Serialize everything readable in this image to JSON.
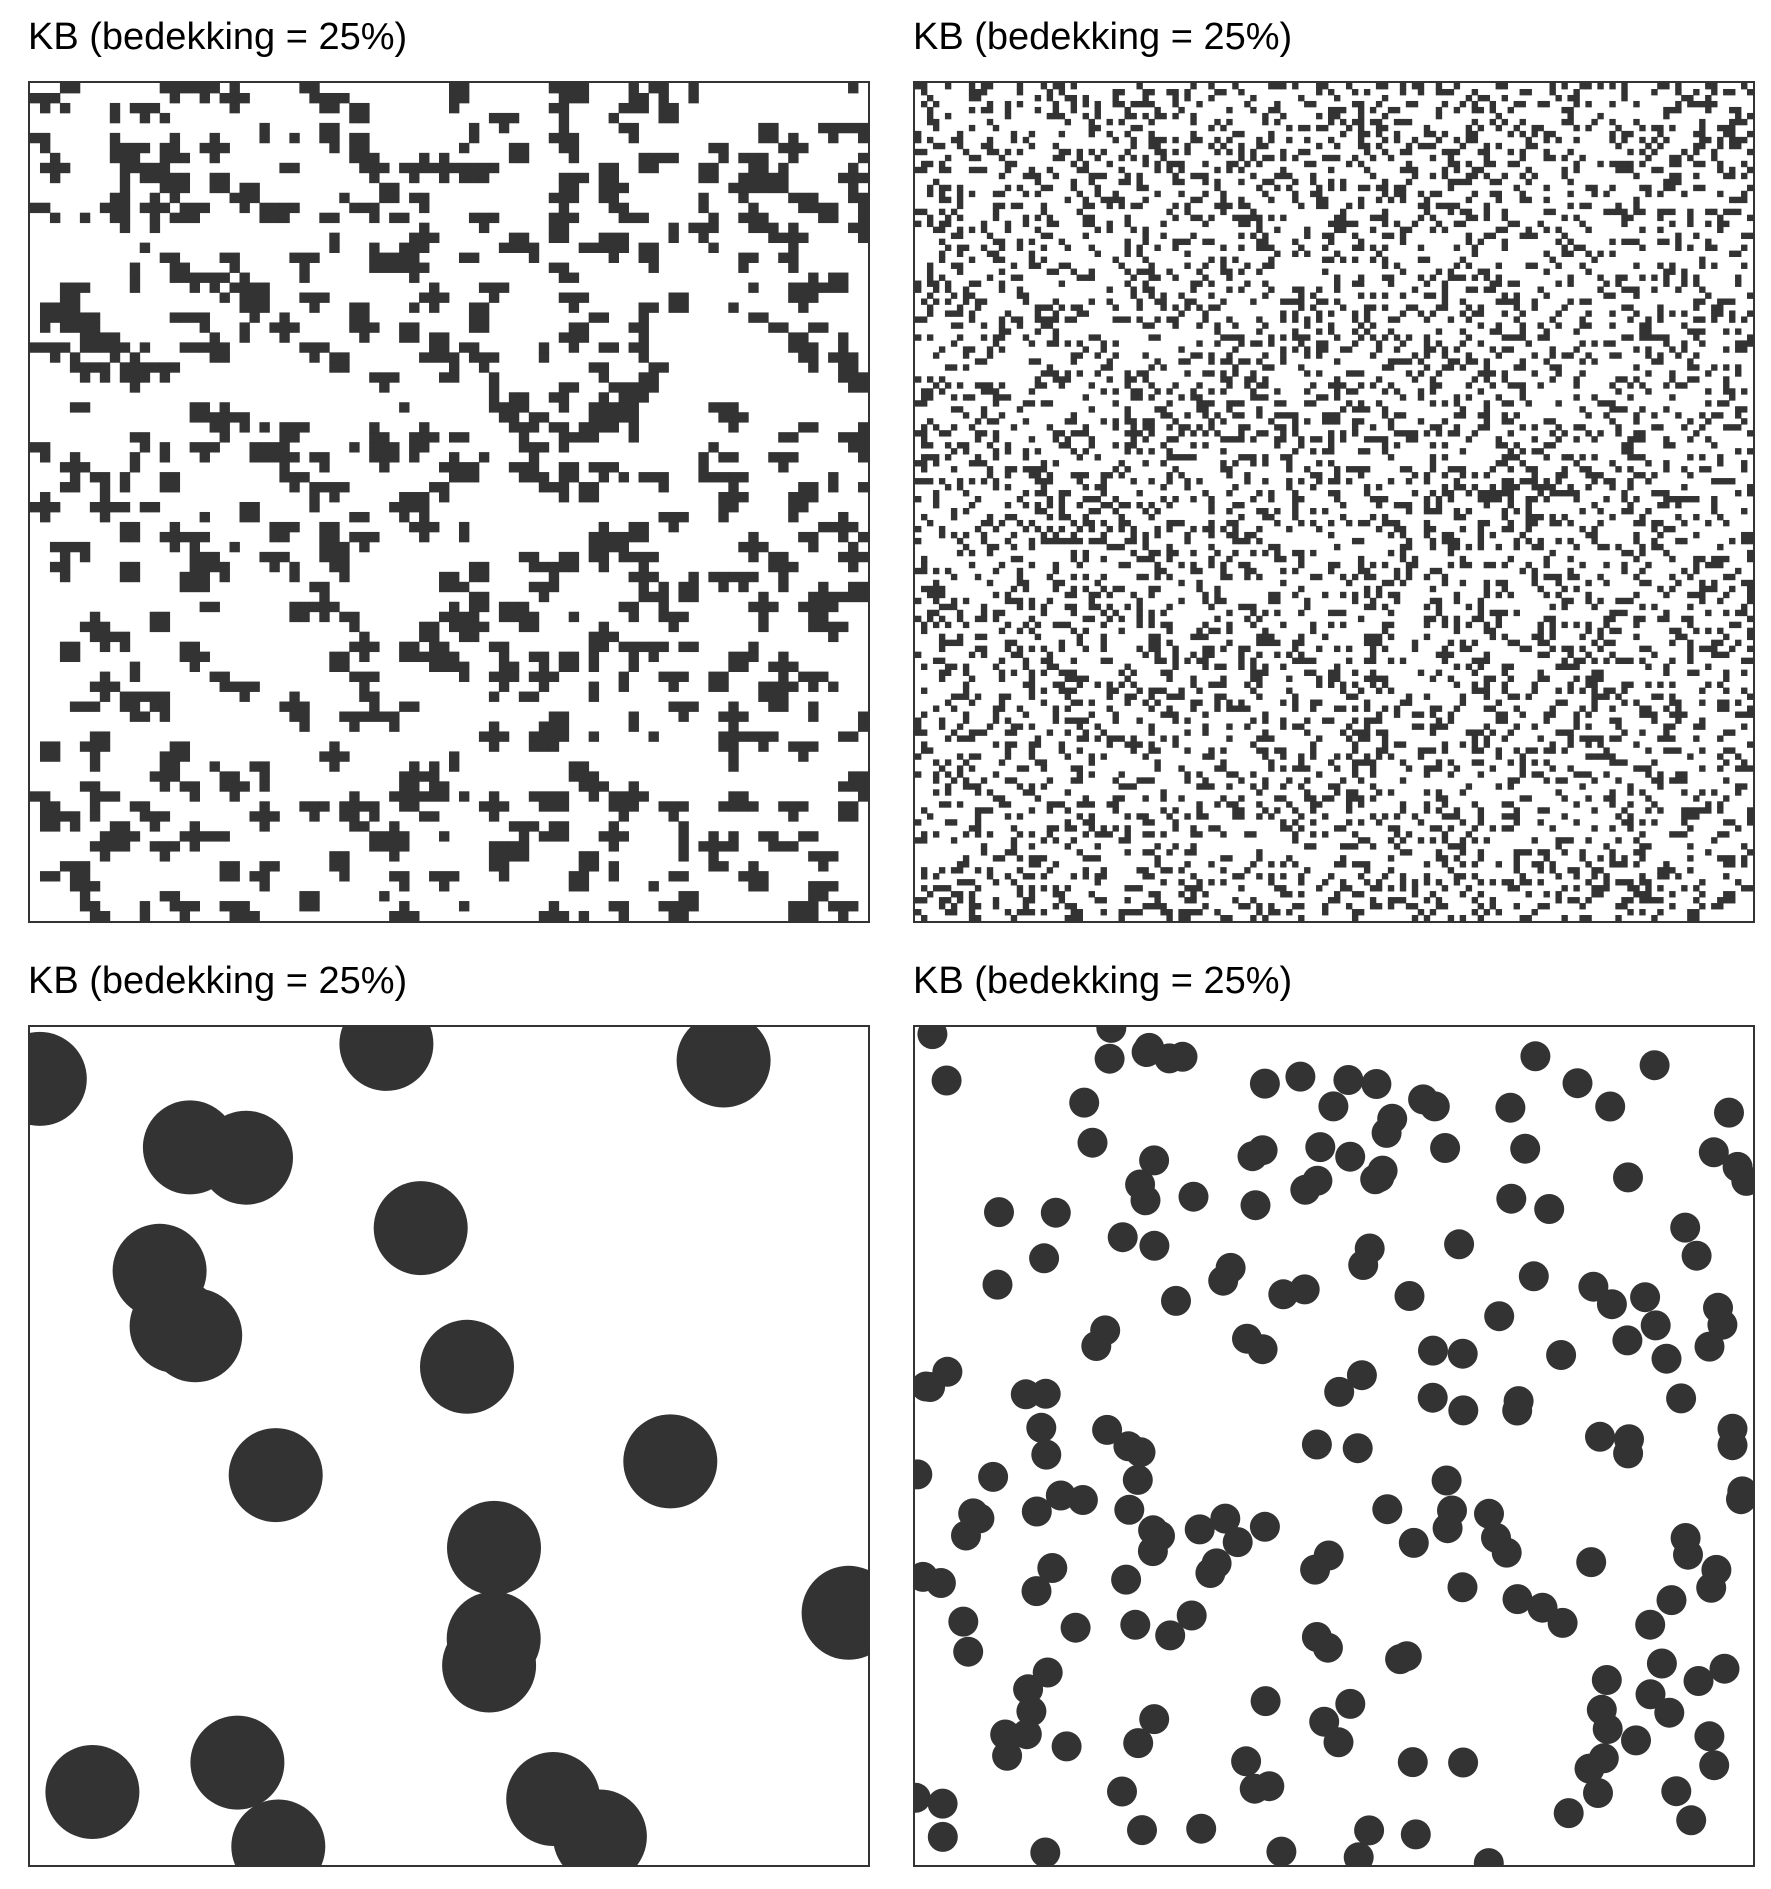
{
  "colors": {
    "fill": "#333333",
    "background": "#ffffff",
    "border": "#333333"
  },
  "panels": [
    {
      "title": "KB (bedekking = 25%)",
      "pattern": "pixel-clusters",
      "coverage": 0.25
    },
    {
      "title": "KB (bedekking = 25%)",
      "pattern": "pixel-noise",
      "coverage": 0.25
    },
    {
      "title": "KB (bedekking = 25%)",
      "pattern": "large-discs",
      "coverage": 0.25
    },
    {
      "title": "KB (bedekking = 25%)",
      "pattern": "small-discs",
      "coverage": 0.25
    }
  ]
}
